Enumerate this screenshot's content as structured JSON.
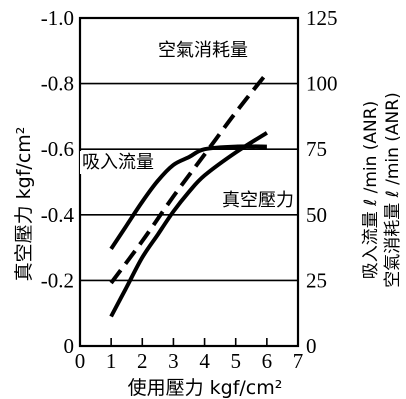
{
  "chart_data": {
    "type": "line",
    "xlabel": "使用壓力 kgf/cm²",
    "ylabel_left": "真空壓力  kgf/cm²",
    "ylabel_right_1": "吸入流量 ℓ /min (ANR)",
    "ylabel_right_2": "空氣消耗量 ℓ /min (ANR)",
    "x": {
      "ticks": [
        "0",
        "1",
        "2",
        "3",
        "4",
        "5",
        "6",
        "7"
      ],
      "lim": [
        0,
        7
      ]
    },
    "y_left": {
      "ticks": [
        "0",
        "-0.2",
        "-0.4",
        "-0.6",
        "-0.8",
        "-1.0"
      ],
      "lim": [
        0,
        -1.0
      ]
    },
    "y_right": {
      "ticks": [
        "0",
        "25",
        "50",
        "75",
        "100",
        "125"
      ],
      "lim": [
        0,
        125
      ]
    },
    "grid": "horizontal",
    "series": [
      {
        "name": "吸入流量",
        "axis": "right",
        "style": "solid",
        "x": [
          1,
          1.5,
          2,
          2.5,
          3,
          3.5,
          4,
          5,
          6
        ],
        "y": [
          37,
          46,
          55,
          63,
          69,
          72,
          75,
          76,
          76
        ]
      },
      {
        "name": "空氣消耗量",
        "axis": "right",
        "style": "dashed",
        "x": [
          1,
          2,
          3,
          4,
          5,
          6
        ],
        "y": [
          24,
          40,
          57,
          73,
          89,
          104
        ]
      },
      {
        "name": "真空壓力",
        "axis": "left",
        "style": "solid",
        "x": [
          1,
          1.5,
          2,
          2.5,
          3,
          3.5,
          4,
          5,
          6
        ],
        "y": [
          -0.09,
          -0.18,
          -0.27,
          -0.34,
          -0.41,
          -0.47,
          -0.52,
          -0.59,
          -0.65
        ]
      }
    ]
  }
}
